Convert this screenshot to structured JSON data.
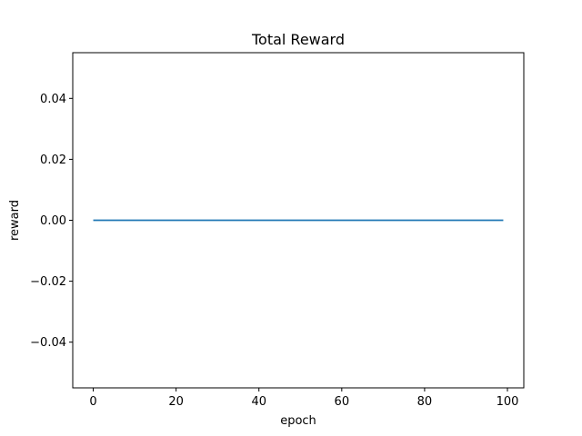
{
  "chart_data": {
    "type": "line",
    "title": "Total Reward",
    "xlabel": "epoch",
    "ylabel": "reward",
    "xlim": [
      -4.95,
      103.95
    ],
    "ylim": [
      -0.055,
      0.055
    ],
    "x_ticks": [
      0,
      20,
      40,
      60,
      80,
      100
    ],
    "x_tick_labels": [
      "0",
      "20",
      "40",
      "60",
      "80",
      "100"
    ],
    "y_ticks": [
      -0.04,
      -0.02,
      0.0,
      0.02,
      0.04
    ],
    "y_tick_labels": [
      "−0.04",
      "−0.02",
      "0.00",
      "0.02",
      "0.04"
    ],
    "grid": false,
    "series": [
      {
        "color": "#1f77b4",
        "x": [
          0,
          99
        ],
        "y": [
          0,
          0
        ]
      }
    ]
  }
}
